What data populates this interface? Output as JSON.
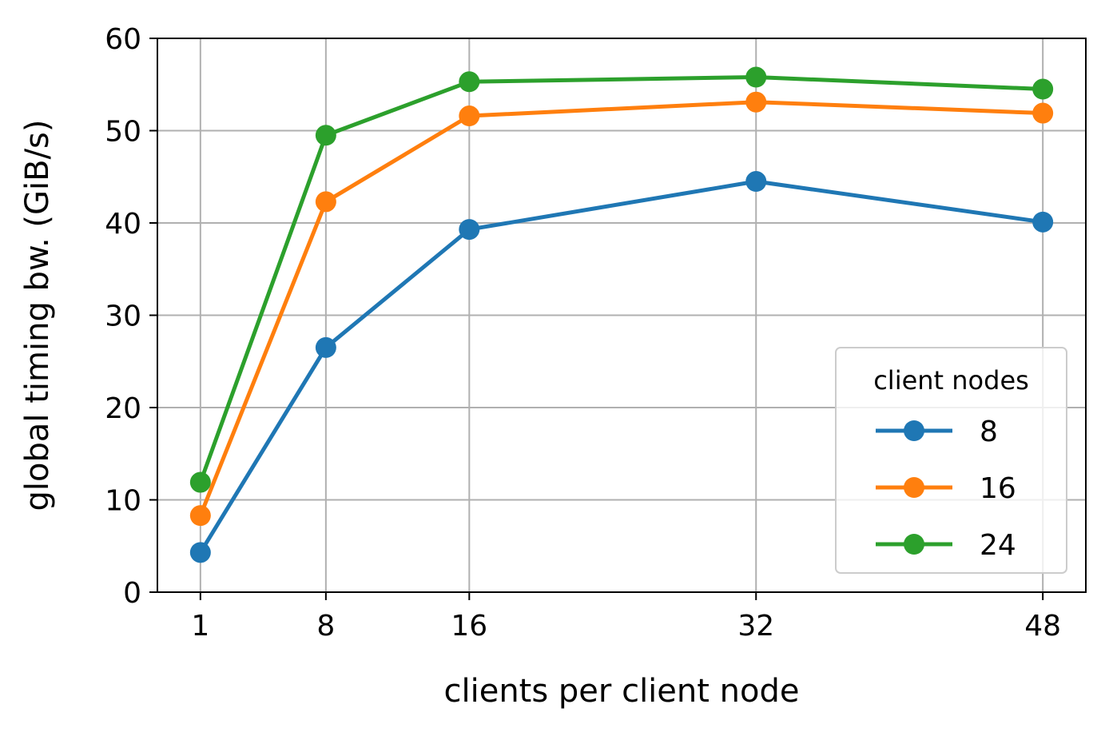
{
  "chart_data": {
    "type": "line",
    "title": "",
    "xlabel": "clients per client node",
    "ylabel": "global timing bw. (GiB/s)",
    "x": [
      1,
      8,
      16,
      32,
      48
    ],
    "x_tick_labels": [
      "1",
      "8",
      "16",
      "32",
      "48"
    ],
    "xlim": [
      -1.4,
      50.4
    ],
    "ylim": [
      0,
      60
    ],
    "y_ticks": [
      0,
      10,
      20,
      30,
      40,
      50,
      60
    ],
    "y_tick_labels": [
      "0",
      "10",
      "20",
      "30",
      "40",
      "50",
      "60"
    ],
    "grid": true,
    "legend": {
      "title": "client nodes",
      "placement": "lower-right"
    },
    "series": [
      {
        "name": "8",
        "color": "#1f77b4",
        "values": [
          4.3,
          26.5,
          39.3,
          44.5,
          40.1
        ]
      },
      {
        "name": "16",
        "color": "#ff7f0e",
        "values": [
          8.3,
          42.3,
          51.6,
          53.1,
          51.9
        ]
      },
      {
        "name": "24",
        "color": "#2ca02c",
        "values": [
          11.9,
          49.5,
          55.3,
          55.8,
          54.5
        ]
      }
    ]
  }
}
